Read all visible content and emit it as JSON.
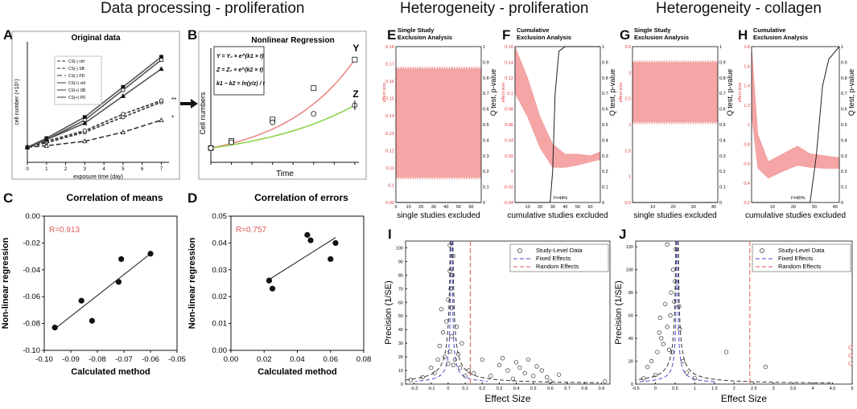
{
  "sections": [
    "Data processing - proliferation",
    "Heterogeneity - proliferation",
    "Heterogeneity - collagen"
  ],
  "panel_letters": [
    "A",
    "B",
    "C",
    "D",
    "E",
    "F",
    "G",
    "H",
    "I",
    "J"
  ],
  "chart_data": [
    {
      "id": "A",
      "type": "line",
      "title": "Original data",
      "xlabel": "exposure time (day)",
      "ylabel": "cell number (×10⁵)",
      "x": [
        0,
        1,
        3,
        5,
        7
      ],
      "xticks": [
        0,
        1,
        2,
        3,
        4,
        5,
        6,
        7
      ],
      "xlim": [
        0,
        7.4
      ],
      "ylim": [
        0,
        4
      ],
      "series": [
        {
          "name": "CS(-) ctrl",
          "values": [
            0.5,
            0.65,
            1.0,
            1.5,
            2.0
          ]
        },
        {
          "name": "CS(-) SB",
          "values": [
            0.5,
            0.7,
            1.05,
            1.6,
            2.05
          ]
        },
        {
          "name": "CS(-) PD",
          "values": [
            0.5,
            0.55,
            0.7,
            1.0,
            1.4
          ]
        },
        {
          "name": "CS(+) ctrl",
          "values": [
            0.5,
            0.8,
            1.5,
            2.5,
            3.5
          ]
        },
        {
          "name": "CS(+) SB",
          "values": [
            0.5,
            0.75,
            1.4,
            2.4,
            3.4
          ]
        },
        {
          "name": "CS(+) PD",
          "values": [
            0.5,
            0.75,
            1.3,
            2.2,
            3.1
          ]
        }
      ],
      "annotations": [
        "**",
        "*"
      ]
    },
    {
      "id": "B",
      "type": "line",
      "title": "Nonlinear Regression",
      "xlabel": "Time",
      "ylabel": "Cell numbers",
      "equations": [
        "Y = Y₀ × e^(k1 × t)",
        "Z = Z₀ × e^(k2 × t)",
        "k1 − k2 = ln(y/z) / t"
      ],
      "curve_labels": [
        "Y",
        "Z"
      ],
      "x": [
        0,
        1,
        3,
        5,
        7
      ],
      "xlim": [
        0,
        7.2
      ],
      "ylim": [
        0,
        4
      ],
      "series": [
        {
          "name": "Y",
          "values": [
            0.5,
            0.75,
            1.5,
            2.6,
            3.6
          ]
        },
        {
          "name": "Z",
          "values": [
            0.5,
            0.7,
            1.4,
            1.7,
            2.0
          ]
        }
      ]
    },
    {
      "id": "C",
      "type": "scatter",
      "title": "Correlation of means",
      "xlabel": "Calculated method",
      "ylabel": "Non-linear regression",
      "annotation": "R=0.913",
      "xlim": [
        -0.1,
        -0.05
      ],
      "ylim": [
        -0.1,
        0.0
      ],
      "xticks": [
        "-0.10",
        "-0.09",
        "-0.08",
        "-0.07",
        "-0.06",
        "-0.05"
      ],
      "yticks": [
        "0.00",
        "-0.02",
        "-0.04",
        "-0.06",
        "-0.08",
        "-0.10"
      ],
      "points": [
        [
          -0.096,
          -0.083
        ],
        [
          -0.086,
          -0.063
        ],
        [
          -0.082,
          -0.078
        ],
        [
          -0.072,
          -0.049
        ],
        [
          -0.071,
          -0.032
        ],
        [
          -0.06,
          -0.028
        ]
      ],
      "fit": [
        [
          -0.096,
          -0.084
        ],
        [
          -0.06,
          -0.028
        ]
      ]
    },
    {
      "id": "D",
      "type": "scatter",
      "title": "Correlation of errors",
      "xlabel": "Calculated method",
      "ylabel": "Non-linear regression",
      "annotation": "R=0.757",
      "xlim": [
        0.0,
        0.08
      ],
      "ylim": [
        0.0,
        0.05
      ],
      "xticks": [
        "0.00",
        "0.02",
        "0.04",
        "0.06",
        "0.08"
      ],
      "yticks": [
        "0.05",
        "0.04",
        "0.03",
        "0.02",
        "0.01",
        "0.00"
      ],
      "points": [
        [
          0.023,
          0.026
        ],
        [
          0.025,
          0.023
        ],
        [
          0.046,
          0.043
        ],
        [
          0.048,
          0.041
        ],
        [
          0.06,
          0.034
        ],
        [
          0.063,
          0.04
        ]
      ],
      "fit": [
        [
          0.022,
          0.026
        ],
        [
          0.063,
          0.042
        ]
      ]
    },
    {
      "id": "E",
      "type": "area",
      "title": "Single Study\nExclusion Analysis",
      "xlabel": "single studies excluded",
      "ylabel_left": "effect size",
      "ylabel_right": "Q test, p-value",
      "xlim": [
        0,
        68
      ],
      "ylim_left": [
        0.08,
        0.18
      ],
      "ylim_right": [
        0,
        1
      ],
      "xticks": [
        "0",
        "10",
        "20",
        "30",
        "40",
        "50",
        "60"
      ],
      "yticks_left": [
        "0.18",
        "0.17",
        "0.16",
        "0.15",
        "0.14",
        "0.13",
        "0.12",
        "0.11",
        "0.1",
        "0.09"
      ],
      "yticks_right": [
        "1",
        "0.9",
        "0.8",
        "0.7",
        "0.6",
        "0.5",
        "0.4",
        "0.3",
        "0.2",
        "0.1",
        "0"
      ],
      "band": {
        "lower": 0.096,
        "upper": 0.166
      },
      "p_value_line": 0
    },
    {
      "id": "F",
      "type": "area",
      "title": "Cumulative\nExclusion Analysis",
      "xlabel": "cumulative studies excluded",
      "ylabel_left": "effect size",
      "ylabel_right": "Q test, p-value",
      "annotation": "I²=44%",
      "xlim": [
        0,
        68
      ],
      "ylim_left": [
        -0.04,
        0.16
      ],
      "ylim_right": [
        0,
        1
      ],
      "xticks": [
        "10",
        "20",
        "30",
        "40",
        "50",
        "60"
      ],
      "yticks_left": [
        "0.16",
        "0.14",
        "0.12",
        "0.1",
        "0.08",
        "0.06",
        "0.04",
        "0.02",
        "0",
        "-0.02",
        "-0.04"
      ],
      "yticks_right": [
        "1",
        "0.9",
        "0.8",
        "0.7",
        "0.6",
        "0.5",
        "0.4",
        "0.3",
        "0.2",
        "0.1",
        "0"
      ],
      "band_upper": [
        [
          0,
          0.16
        ],
        [
          10,
          0.12
        ],
        [
          20,
          0.07
        ],
        [
          30,
          0.035
        ],
        [
          40,
          0.022
        ],
        [
          50,
          0.022
        ],
        [
          60,
          0.02
        ],
        [
          68,
          0.025
        ]
      ],
      "band_lower": [
        [
          0,
          0.1
        ],
        [
          10,
          0.07
        ],
        [
          20,
          0.03
        ],
        [
          30,
          0.005
        ],
        [
          40,
          0.005
        ],
        [
          50,
          0.008
        ],
        [
          60,
          0.012
        ],
        [
          68,
          0.015
        ]
      ],
      "p_curve": [
        [
          0,
          0
        ],
        [
          28,
          0
        ],
        [
          30,
          0.2
        ],
        [
          32,
          0.7
        ],
        [
          35,
          0.97
        ],
        [
          40,
          1
        ],
        [
          68,
          1
        ]
      ]
    },
    {
      "id": "G",
      "type": "area",
      "title": "Single Study\nExclusion Analysis",
      "xlabel": "single studies excluded",
      "ylabel_left": "effect size",
      "ylabel_right": "Q test, p-value",
      "xlim": [
        0,
        42
      ],
      "ylim_left": [
        0,
        3.5
      ],
      "ylim_right": [
        0,
        1
      ],
      "xticks": [
        "10",
        "20",
        "30",
        "40"
      ],
      "yticks_left": [
        "3.5",
        "3",
        "2.5",
        "2",
        "1.5",
        "1",
        "0.5"
      ],
      "yticks_right": [
        "1",
        "0.9",
        "0.8",
        "0.7",
        "0.6",
        "0.5",
        "0.4",
        "0.3",
        "0.2",
        "0.1",
        "0"
      ],
      "band": {
        "lower": 1.8,
        "upper": 3.15
      },
      "p_value_line": 0
    },
    {
      "id": "H",
      "type": "area",
      "title": "Cumulative\nExclusion Analysis",
      "xlabel": "cumulative studies excluded",
      "ylabel_left": "effect size",
      "ylabel_right": "Q test, p-value",
      "annotation": "I²=80%",
      "xlim": [
        0,
        42
      ],
      "ylim_left": [
        0.2,
        1.8
      ],
      "ylim_right": [
        0,
        1
      ],
      "xticks": [
        "10",
        "20",
        "30",
        "40"
      ],
      "yticks_left": [
        "1.8",
        "1.6",
        "1.4",
        "1.2",
        "1",
        "0.8",
        "0.6",
        "0.4",
        "0.2"
      ],
      "yticks_right": [
        "1",
        "0.9",
        "0.8",
        "0.7",
        "0.6",
        "0.5",
        "0.4",
        "0.3",
        "0.2",
        "0.1",
        "0"
      ],
      "band_upper": [
        [
          0,
          1.8
        ],
        [
          3,
          0.9
        ],
        [
          8,
          0.62
        ],
        [
          15,
          0.7
        ],
        [
          22,
          0.78
        ],
        [
          28,
          0.7
        ],
        [
          35,
          0.68
        ],
        [
          42,
          0.66
        ]
      ],
      "band_lower": [
        [
          0,
          1.1
        ],
        [
          3,
          0.55
        ],
        [
          8,
          0.45
        ],
        [
          15,
          0.52
        ],
        [
          22,
          0.58
        ],
        [
          28,
          0.56
        ],
        [
          35,
          0.55
        ],
        [
          42,
          0.55
        ]
      ],
      "p_curve": [
        [
          0,
          0
        ],
        [
          28,
          0
        ],
        [
          31,
          0.3
        ],
        [
          34,
          0.75
        ],
        [
          37,
          0.92
        ],
        [
          42,
          1
        ]
      ]
    },
    {
      "id": "I",
      "type": "scatter",
      "title": "",
      "xlabel": "Effect Size",
      "ylabel": "Precision (1/SE)",
      "legend": [
        "Study-Level Data",
        "Fixed Effects",
        "Random Effects"
      ],
      "xlim": [
        -0.25,
        0.95
      ],
      "ylim": [
        0,
        105
      ],
      "xticks": [
        "-0.2",
        "-0.1",
        "0",
        "0.1",
        "0.2",
        "0.3",
        "0.4",
        "0.5",
        "0.6",
        "0.7",
        "0.8",
        "0.9"
      ],
      "yticks": [
        "0",
        "10",
        "20",
        "30",
        "40",
        "50",
        "60",
        "70",
        "80",
        "90",
        "100"
      ],
      "fixed_effect": 0.02,
      "random_effect": 0.13,
      "points": [
        [
          -0.22,
          3
        ],
        [
          -0.15,
          5
        ],
        [
          -0.1,
          12
        ],
        [
          -0.08,
          8
        ],
        [
          -0.06,
          18
        ],
        [
          -0.05,
          28
        ],
        [
          -0.04,
          55
        ],
        [
          -0.03,
          38
        ],
        [
          -0.02,
          20
        ],
        [
          -0.01,
          46
        ],
        [
          0.0,
          15
        ],
        [
          0.0,
          62
        ],
        [
          0.01,
          24
        ],
        [
          0.01,
          83
        ],
        [
          0.01,
          102
        ],
        [
          0.015,
          70
        ],
        [
          0.02,
          56
        ],
        [
          0.02,
          35
        ],
        [
          0.025,
          80
        ],
        [
          0.03,
          14
        ],
        [
          0.03,
          94
        ],
        [
          0.04,
          18
        ],
        [
          0.05,
          42
        ],
        [
          0.06,
          22
        ],
        [
          0.07,
          12
        ],
        [
          0.08,
          30
        ],
        [
          0.1,
          6
        ],
        [
          0.12,
          10
        ],
        [
          0.15,
          8
        ],
        [
          0.2,
          18
        ],
        [
          0.25,
          6
        ],
        [
          0.3,
          14
        ],
        [
          0.32,
          19
        ],
        [
          0.35,
          10
        ],
        [
          0.38,
          4
        ],
        [
          0.4,
          16
        ],
        [
          0.42,
          12
        ],
        [
          0.45,
          8
        ],
        [
          0.47,
          18
        ],
        [
          0.5,
          6
        ],
        [
          0.52,
          13
        ],
        [
          0.55,
          10
        ],
        [
          0.58,
          5
        ],
        [
          0.6,
          2
        ],
        [
          0.65,
          7
        ],
        [
          0.92,
          2
        ]
      ]
    },
    {
      "id": "J",
      "type": "scatter",
      "title": "",
      "xlabel": "Effect Size",
      "ylabel": "Precision (1/SE)",
      "legend": [
        "Study-Level Data",
        "Fixed Effects",
        "Random Effects"
      ],
      "xlim": [
        -0.5,
        5
      ],
      "ylim": [
        0,
        125
      ],
      "xticks": [
        "-0.5",
        "0",
        "0.5",
        "1",
        "1.5",
        "2",
        "2.5",
        "3",
        "3.5",
        "4",
        "4.5",
        "5"
      ],
      "yticks": [
        "0",
        "20",
        "40",
        "60",
        "80",
        "100",
        "120"
      ],
      "fixed_effect": 0.55,
      "random_effect": 2.4,
      "points": [
        [
          -0.3,
          5
        ],
        [
          -0.2,
          15
        ],
        [
          -0.1,
          20
        ],
        [
          0.0,
          8
        ],
        [
          0.05,
          28
        ],
        [
          0.1,
          45
        ],
        [
          0.12,
          58
        ],
        [
          0.15,
          40
        ],
        [
          0.2,
          35
        ],
        [
          0.25,
          70
        ],
        [
          0.3,
          50
        ],
        [
          0.3,
          122
        ],
        [
          0.35,
          30
        ],
        [
          0.38,
          60
        ],
        [
          0.4,
          80
        ],
        [
          0.42,
          28
        ],
        [
          0.45,
          100
        ],
        [
          0.48,
          72
        ],
        [
          0.5,
          90
        ],
        [
          0.52,
          118
        ],
        [
          0.55,
          85
        ],
        [
          0.6,
          68
        ],
        [
          0.62,
          48
        ],
        [
          0.7,
          20
        ],
        [
          0.8,
          10
        ],
        [
          1.0,
          5
        ],
        [
          1.8,
          28
        ],
        [
          2.8,
          15
        ],
        [
          5.0,
          18
        ],
        [
          5.0,
          25
        ],
        [
          5.0,
          32
        ]
      ]
    }
  ]
}
